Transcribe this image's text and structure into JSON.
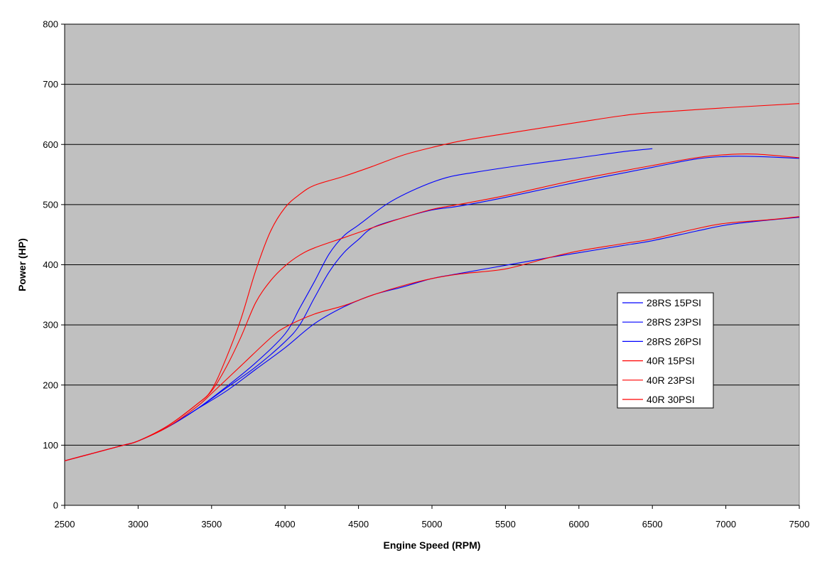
{
  "chart_data": {
    "type": "line",
    "title": "",
    "xlabel": "Engine Speed (RPM)",
    "ylabel": "Power (HP)",
    "xlim": [
      2500,
      7500
    ],
    "ylim": [
      0,
      800
    ],
    "x_ticks": [
      2500,
      3000,
      3500,
      4000,
      4500,
      5000,
      5500,
      6000,
      6500,
      7000,
      7500
    ],
    "y_ticks": [
      0,
      100,
      200,
      300,
      400,
      500,
      600,
      700,
      800
    ],
    "grid": "horizontal",
    "plot_background": "#c0c0c0",
    "legend_placement": "right",
    "series": [
      {
        "name": "28RS 15PSI",
        "color": "#0000ff",
        "points": [
          [
            2500,
            74
          ],
          [
            2700,
            87
          ],
          [
            2900,
            100
          ],
          [
            3000,
            107
          ],
          [
            3200,
            130
          ],
          [
            3400,
            160
          ],
          [
            3600,
            190
          ],
          [
            3800,
            226
          ],
          [
            4000,
            262
          ],
          [
            4200,
            302
          ],
          [
            4400,
            330
          ],
          [
            4600,
            350
          ],
          [
            4800,
            363
          ],
          [
            5000,
            377
          ],
          [
            5200,
            386
          ],
          [
            5500,
            399
          ],
          [
            5800,
            412
          ],
          [
            6000,
            420
          ],
          [
            6300,
            432
          ],
          [
            6500,
            440
          ],
          [
            6800,
            456
          ],
          [
            7000,
            466
          ],
          [
            7200,
            472
          ],
          [
            7500,
            479
          ]
        ]
      },
      {
        "name": "28RS 23PSI",
        "color": "#0000ff",
        "points": [
          [
            2500,
            74
          ],
          [
            2700,
            87
          ],
          [
            2900,
            100
          ],
          [
            3000,
            107
          ],
          [
            3200,
            130
          ],
          [
            3400,
            160
          ],
          [
            3600,
            195
          ],
          [
            3800,
            230
          ],
          [
            4000,
            272
          ],
          [
            4100,
            300
          ],
          [
            4200,
            345
          ],
          [
            4300,
            388
          ],
          [
            4400,
            420
          ],
          [
            4500,
            442
          ],
          [
            4600,
            462
          ],
          [
            4800,
            478
          ],
          [
            5000,
            491
          ],
          [
            5200,
            498
          ],
          [
            5500,
            512
          ],
          [
            6000,
            538
          ],
          [
            6500,
            562
          ],
          [
            6800,
            576
          ],
          [
            7000,
            580
          ],
          [
            7200,
            580
          ],
          [
            7500,
            577
          ]
        ]
      },
      {
        "name": "28RS 26PSI",
        "color": "#0000ff",
        "points": [
          [
            2500,
            74
          ],
          [
            2700,
            87
          ],
          [
            2900,
            100
          ],
          [
            3000,
            107
          ],
          [
            3200,
            130
          ],
          [
            3400,
            160
          ],
          [
            3600,
            197
          ],
          [
            3800,
            237
          ],
          [
            4000,
            285
          ],
          [
            4100,
            328
          ],
          [
            4200,
            372
          ],
          [
            4300,
            418
          ],
          [
            4400,
            448
          ],
          [
            4500,
            466
          ],
          [
            4700,
            502
          ],
          [
            4900,
            527
          ],
          [
            5100,
            545
          ],
          [
            5300,
            554
          ],
          [
            5600,
            565
          ],
          [
            6000,
            578
          ],
          [
            6300,
            588
          ],
          [
            6500,
            593
          ]
        ]
      },
      {
        "name": "40R 15PSI",
        "color": "#ff0000",
        "points": [
          [
            2500,
            74
          ],
          [
            2700,
            87
          ],
          [
            2900,
            100
          ],
          [
            3000,
            107
          ],
          [
            3200,
            130
          ],
          [
            3400,
            164
          ],
          [
            3500,
            186
          ],
          [
            3700,
            232
          ],
          [
            3900,
            278
          ],
          [
            4000,
            296
          ],
          [
            4200,
            318
          ],
          [
            4400,
            332
          ],
          [
            4600,
            350
          ],
          [
            4800,
            365
          ],
          [
            5000,
            377
          ],
          [
            5200,
            385
          ],
          [
            5500,
            393
          ],
          [
            5800,
            412
          ],
          [
            6000,
            423
          ],
          [
            6300,
            435
          ],
          [
            6500,
            443
          ],
          [
            6800,
            460
          ],
          [
            7000,
            469
          ],
          [
            7300,
            475
          ],
          [
            7500,
            480
          ]
        ]
      },
      {
        "name": "40R 23PSI",
        "color": "#ff0000",
        "points": [
          [
            2500,
            74
          ],
          [
            2700,
            87
          ],
          [
            2900,
            100
          ],
          [
            3000,
            107
          ],
          [
            3200,
            132
          ],
          [
            3400,
            168
          ],
          [
            3500,
            190
          ],
          [
            3600,
            230
          ],
          [
            3700,
            280
          ],
          [
            3800,
            337
          ],
          [
            3900,
            373
          ],
          [
            4000,
            398
          ],
          [
            4100,
            416
          ],
          [
            4200,
            428
          ],
          [
            4400,
            445
          ],
          [
            4600,
            462
          ],
          [
            4800,
            478
          ],
          [
            5000,
            492
          ],
          [
            5200,
            501
          ],
          [
            5500,
            515
          ],
          [
            6000,
            542
          ],
          [
            6500,
            565
          ],
          [
            6800,
            578
          ],
          [
            7000,
            583
          ],
          [
            7200,
            584
          ],
          [
            7500,
            578
          ]
        ]
      },
      {
        "name": "40R 30PSI",
        "color": "#ff0000",
        "points": [
          [
            2500,
            74
          ],
          [
            2700,
            87
          ],
          [
            2900,
            100
          ],
          [
            3000,
            107
          ],
          [
            3200,
            132
          ],
          [
            3400,
            168
          ],
          [
            3500,
            192
          ],
          [
            3600,
            245
          ],
          [
            3700,
            310
          ],
          [
            3800,
            390
          ],
          [
            3900,
            455
          ],
          [
            4000,
            495
          ],
          [
            4100,
            517
          ],
          [
            4200,
            532
          ],
          [
            4400,
            547
          ],
          [
            4600,
            564
          ],
          [
            4800,
            582
          ],
          [
            5000,
            595
          ],
          [
            5200,
            606
          ],
          [
            5500,
            618
          ],
          [
            6000,
            637
          ],
          [
            6300,
            648
          ],
          [
            6500,
            653
          ],
          [
            7000,
            661
          ],
          [
            7500,
            668
          ]
        ]
      }
    ]
  }
}
